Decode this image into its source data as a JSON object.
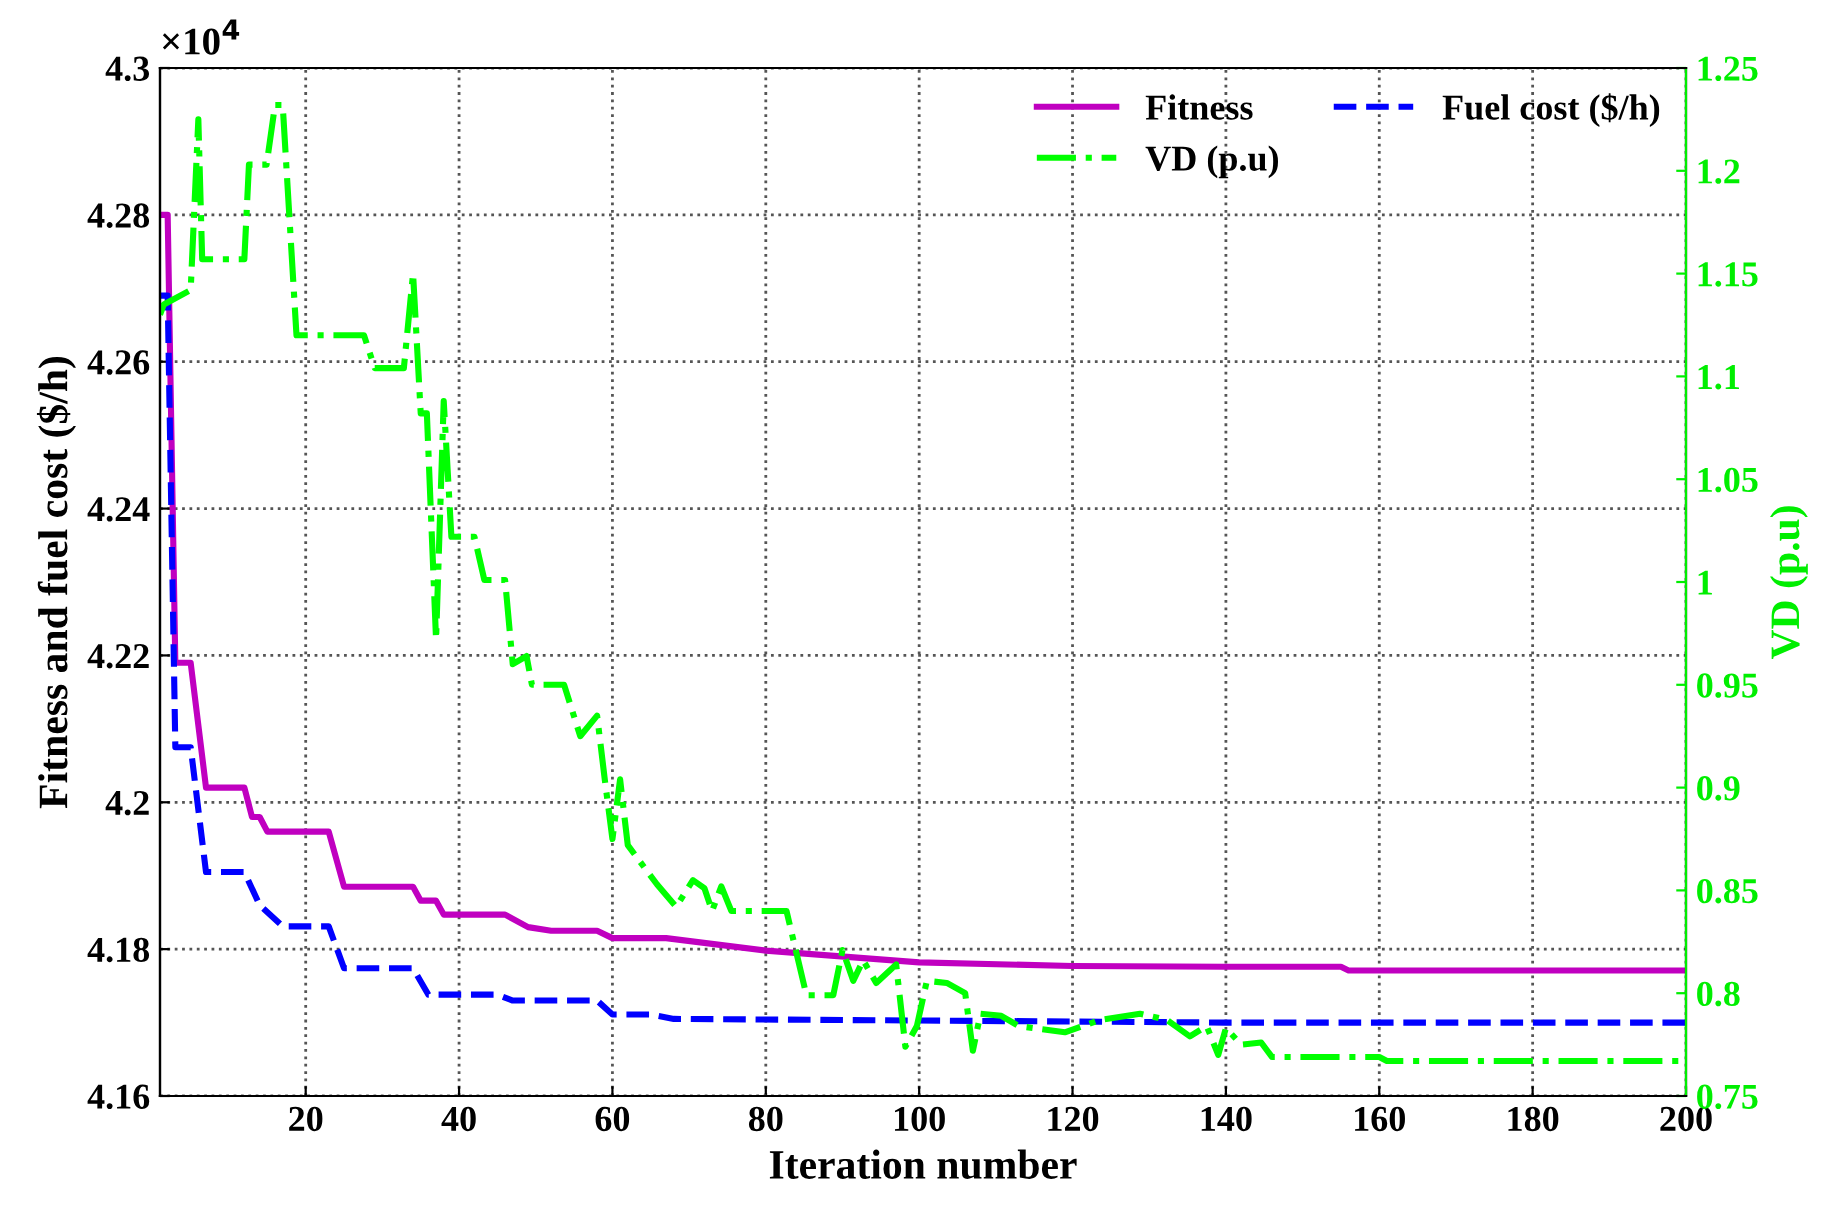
{
  "chart_data": {
    "type": "line",
    "xlabel": "Iteration number",
    "ylabel": "Fitness and fuel cost ($/h)",
    "y2label": "VD (p.u)",
    "xlim": [
      1,
      200
    ],
    "xticks": [
      20,
      40,
      60,
      80,
      100,
      120,
      140,
      160,
      180,
      200
    ],
    "ylim": [
      4.16,
      4.3
    ],
    "yticks": [
      4.16,
      4.18,
      4.2,
      4.22,
      4.24,
      4.26,
      4.28,
      4.3
    ],
    "y2lim": [
      0.75,
      1.25
    ],
    "y2ticks": [
      0.75,
      0.8,
      0.85,
      0.9,
      0.95,
      1,
      1.05,
      1.1,
      1.15,
      1.2,
      1.25
    ],
    "annotations": [
      "×10$^{4}$"
    ],
    "grid": true,
    "legend": "top right",
    "series": [
      {
        "name": "Fitness",
        "color": "#c000c0",
        "line_style": "solid",
        "x": [
          1,
          2,
          3,
          5,
          7,
          12,
          13,
          14,
          15,
          23,
          25,
          34,
          35,
          37,
          38,
          46,
          49,
          52,
          58,
          60,
          67,
          80,
          100,
          120,
          140,
          155,
          156,
          200
        ],
        "values": [
          4.28,
          4.28,
          4.219,
          4.219,
          4.202,
          4.202,
          4.198,
          4.198,
          4.196,
          4.196,
          4.1885,
          4.1885,
          4.1866,
          4.1866,
          4.1847,
          4.1847,
          4.183,
          4.1825,
          4.1825,
          4.1815,
          4.1815,
          4.1798,
          4.1782,
          4.1777,
          4.1776,
          4.1776,
          4.1771,
          4.1771
        ]
      },
      {
        "name": "Fuel cost ($/h)",
        "color": "#0000ff",
        "line_style": "dashed",
        "x": [
          1,
          2,
          3,
          5,
          7,
          12,
          14,
          17,
          23,
          25,
          34,
          36,
          45,
          47,
          58,
          60,
          65,
          68,
          140,
          200
        ],
        "values": [
          4.269,
          4.269,
          4.2075,
          4.2075,
          4.1905,
          4.1905,
          4.186,
          4.1831,
          4.1831,
          4.1774,
          4.1774,
          4.1738,
          4.1738,
          4.173,
          4.173,
          4.1711,
          4.1711,
          4.1705,
          4.17,
          4.17
        ]
      },
      {
        "name": "VD (p.u)",
        "color": "#00ff00",
        "line_style": "dashdot",
        "axis": "y2",
        "x": [
          1,
          1.5,
          5,
          6,
          6.5,
          12,
          12.6,
          14.9,
          16,
          17,
          18.8,
          27.6,
          29,
          32.8,
          34,
          35,
          35.8,
          37,
          38,
          39,
          42,
          43.3,
          46,
          47,
          48.8,
          49.5,
          53.7,
          55.8,
          58,
          59,
          60,
          61,
          62,
          65.8,
          68.3,
          70.5,
          72,
          73,
          74.2,
          75.5,
          82.7,
          85.3,
          88.8,
          90,
          91.4,
          92.7,
          94.4,
          97,
          98.2,
          99.7,
          101,
          103.6,
          106,
          107,
          108,
          110.7,
          113,
          119,
          123.6,
          128.8,
          132.3,
          135.3,
          137.5,
          139,
          140,
          142,
          144.6,
          146,
          160,
          161,
          200
        ],
        "values": [
          1.13,
          1.135,
          1.142,
          1.225,
          1.157,
          1.157,
          1.203,
          1.203,
          1.232,
          1.232,
          1.12,
          1.12,
          1.104,
          1.104,
          1.15,
          1.082,
          1.082,
          0.972,
          1.088,
          1.022,
          1.022,
          1.001,
          1.001,
          0.96,
          0.964,
          0.95,
          0.95,
          0.925,
          0.935,
          0.904,
          0.875,
          0.904,
          0.872,
          0.853,
          0.842,
          0.855,
          0.851,
          0.84,
          0.852,
          0.84,
          0.84,
          0.799,
          0.799,
          0.821,
          0.806,
          0.816,
          0.805,
          0.814,
          0.774,
          0.784,
          0.806,
          0.805,
          0.8,
          0.772,
          0.79,
          0.789,
          0.784,
          0.781,
          0.787,
          0.79,
          0.787,
          0.779,
          0.784,
          0.77,
          0.783,
          0.775,
          0.776,
          0.769,
          0.769,
          0.767,
          0.767
        ]
      }
    ]
  }
}
